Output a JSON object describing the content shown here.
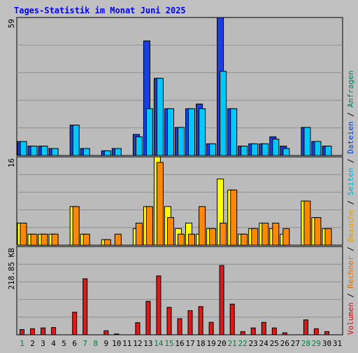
{
  "colors": {
    "page_bg": "#c0c0c0",
    "panel_bg": "#bbbbbb",
    "title": "#0000ff",
    "axis_label": "#000000",
    "day_normal": "#000000",
    "day_weekend": "#008040",
    "anfragen": "#1a3fe0",
    "dateien": "#00c8ff",
    "seiten": "#ffff00",
    "besuche": "#ff8800",
    "rechner": "#ff8800",
    "volumen": "#e01818",
    "legend_anfragen": "#008060",
    "legend_dateien": "#0040d0",
    "legend_seiten": "#00b0d0",
    "legend_besuche": "#e0a000",
    "legend_rechner": "#e07000",
    "legend_volumen": "#d01010"
  },
  "chart_data": {
    "type": "bar",
    "title": "Tages-Statistik im Monat Juni 2025",
    "x": {
      "days": [
        "1",
        "2",
        "3",
        "4",
        "5",
        "6",
        "7",
        "8",
        "9",
        "10",
        "11",
        "12",
        "13",
        "14",
        "15",
        "16",
        "17",
        "18",
        "19",
        "20",
        "21",
        "22",
        "23",
        "24",
        "25",
        "26",
        "27",
        "28",
        "29",
        "30",
        "31"
      ],
      "weekend_days": [
        "1",
        "7",
        "8",
        "14",
        "15",
        "21",
        "22",
        "28",
        "29"
      ]
    },
    "legend": {
      "position": "right-vertical",
      "items": [
        {
          "label": "Volumen",
          "color": "#d01010"
        },
        {
          "label": "Rechner",
          "color": "#e07000"
        },
        {
          "label": "Besuche",
          "color": "#e0a000"
        },
        {
          "label": "Seiten",
          "color": "#00b0d0"
        },
        {
          "label": "Dateien",
          "color": "#0040d0"
        },
        {
          "label": "Anfragen",
          "color": "#008060"
        }
      ],
      "separator": " / "
    },
    "panels": [
      {
        "id": "hits",
        "ymax_label": "59",
        "ymax": 59,
        "gridlines": 4,
        "series": [
          {
            "name": "Anfragen",
            "values": [
              6,
              4,
              4,
              3,
              0,
              13,
              3,
              0,
              2,
              3,
              0,
              9,
              49,
              33,
              20,
              12,
              20,
              22,
              5,
              59,
              20,
              4,
              5,
              5,
              8,
              4,
              0,
              12,
              6,
              4,
              0
            ]
          },
          {
            "name": "Dateien",
            "values": [
              6,
              4,
              4,
              3,
              0,
              13,
              3,
              0,
              2,
              3,
              0,
              8,
              20,
              33,
              20,
              12,
              20,
              20,
              5,
              36,
              20,
              4,
              5,
              5,
              7,
              3,
              0,
              12,
              6,
              4,
              0
            ]
          }
        ]
      },
      {
        "id": "visits",
        "ymax_label": "16",
        "ymax": 16,
        "gridlines": 4,
        "series": [
          {
            "name": "Seiten",
            "values": [
              4,
              2,
              2,
              2,
              0,
              7,
              2,
              0,
              1,
              0,
              0,
              3,
              7,
              16,
              7,
              3,
              4,
              2,
              3,
              12,
              10,
              2,
              3,
              4,
              3,
              2,
              0,
              8,
              5,
              3,
              0
            ]
          },
          {
            "name": "Besuche",
            "values": [
              4,
              2,
              2,
              2,
              0,
              7,
              2,
              0,
              1,
              2,
              0,
              4,
              7,
              15,
              5,
              2,
              2,
              7,
              3,
              4,
              10,
              2,
              3,
              4,
              4,
              3,
              0,
              8,
              5,
              3,
              0
            ]
          }
        ]
      },
      {
        "id": "volume",
        "ymax_label": "218.85 KB",
        "ymax": 218.85,
        "gridlines": 4,
        "series": [
          {
            "name": "Volumen",
            "values": [
              13,
              15,
              17,
              18,
              0,
              56,
              139,
              0,
              10,
              2,
              0,
              30,
              83,
              146,
              68,
              40,
              60,
              70,
              31,
              172,
              76,
              8,
              17,
              31,
              17,
              5,
              0,
              37,
              15,
              8,
              0
            ]
          }
        ]
      }
    ]
  }
}
